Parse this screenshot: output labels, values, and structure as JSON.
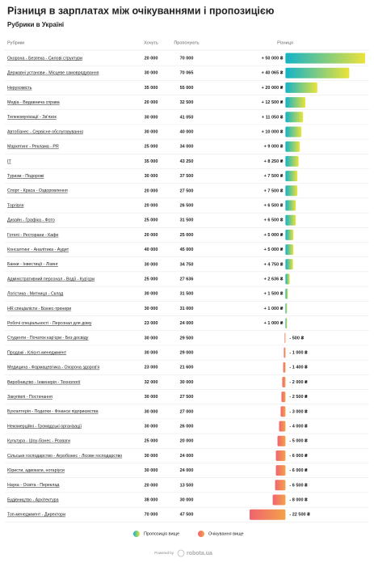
{
  "chart_data": {
    "type": "diverging-bar-table",
    "title": "Різниця в зарплатах між очікуваннями і пропозицією",
    "subtitle": "Рубрики в Україні",
    "columns": [
      "Рубрики",
      "Хочуть",
      "Пропонують",
      "Різниця"
    ],
    "categories": [
      "Охорона - Безпека - Силові структури",
      "Державні установи - Місцеве самоврядування",
      "Нерухомість",
      "Медіа - Видавнича справа",
      "Телекомунікації - Зв'язок",
      "Автобізнес - Сервісне обслуговування",
      "Маркетинг - Реклама - PR",
      "IT",
      "Туризм - Подорожі",
      "Спорт - Краса - Оздоровлення",
      "Торгівля",
      "Дизайн - Графіка - Фото",
      "Готелі - Ресторани - Кафе",
      "Консалтинг - Аналітика - Аудит",
      "Банки - Інвестиції - Лізинг",
      "Адміністративний персонал - Водії - Кур'єри",
      "Логістика - Митниця - Склад",
      "HR спеціалісти - Бізнес-тренери",
      "Робочі спеціальності - Персонал для дому",
      "Студенти - Початок кар'єри - Без досвіду",
      "Продажі - Клієнт-менеджмент",
      "Медицина - Фармацевтика - Охорона здоров'я",
      "Виробництво - Інженерія - Технології",
      "Закупівлі - Постачання",
      "Бухгалтерія - Податки - Фінанси підприємства",
      "Некомерційні - Громадські організації",
      "Культура - Шоу-бізнес - Розваги",
      "Сільське господарство - Агробізнес - Лісове господарство",
      "Юристи, адвокати, нотаріуси",
      "Наука - Освіта - Переклад",
      "Будівництво - Архітектура",
      "Топ-менеджмент - Директори"
    ],
    "want": [
      "20 000",
      "30 000",
      "35 000",
      "20 000",
      "30 000",
      "30 000",
      "25 000",
      "35 000",
      "30 000",
      "20 000",
      "20 000",
      "25 000",
      "20 000",
      "40 000",
      "30 000",
      "25 000",
      "30 000",
      "30 000",
      "23 000",
      "30 000",
      "30 000",
      "23 000",
      "32 000",
      "30 000",
      "30 000",
      "30 000",
      "25 000",
      "30 000",
      "30 000",
      "20 000",
      "38 000",
      "70 000"
    ],
    "offer": [
      "70 000",
      "70 065",
      "55 000",
      "32 500",
      "41 050",
      "40 000",
      "34 000",
      "43 250",
      "37 500",
      "27 500",
      "26 500",
      "31 500",
      "25 000",
      "45 000",
      "34 750",
      "27 636",
      "31 500",
      "31 000",
      "24 000",
      "29 500",
      "29 000",
      "21 600",
      "30 000",
      "27 500",
      "27 000",
      "26 000",
      "20 000",
      "24 000",
      "24 000",
      "13 500",
      "30 000",
      "47 500"
    ],
    "values": [
      50000,
      40065,
      20000,
      12500,
      11050,
      10000,
      9000,
      8250,
      7500,
      7500,
      6500,
      6500,
      5000,
      5000,
      4750,
      2636,
      1500,
      1000,
      1000,
      -500,
      -1000,
      -1400,
      -2000,
      -2500,
      -3000,
      -4000,
      -5000,
      -6000,
      -6000,
      -6500,
      -8000,
      -22500
    ],
    "value_labels": [
      "+ 50 000 ₴",
      "+ 40 065 ₴",
      "+ 20 000 ₴",
      "+ 12 500 ₴",
      "+ 11 050 ₴",
      "+ 10 000 ₴",
      "+ 9 000 ₴",
      "+ 8 250 ₴",
      "+ 7 500 ₴",
      "+ 7 500 ₴",
      "+ 6 500 ₴",
      "+ 6 500 ₴",
      "+ 5 000 ₴",
      "+ 5 000 ₴",
      "+ 4 750 ₴",
      "+ 2 636 ₴",
      "+ 1 500 ₴",
      "+ 1 000 ₴",
      "+ 1 000 ₴",
      "- 500 ₴",
      "- 1 000 ₴",
      "- 1 400 ₴",
      "- 2 000 ₴",
      "- 2 500 ₴",
      "- 3 000 ₴",
      "- 4 000 ₴",
      "- 5 000 ₴",
      "- 6 000 ₴",
      "- 6 000 ₴",
      "- 6 500 ₴",
      "- 8 000 ₴",
      "- 22 500 ₴"
    ],
    "xlim": [
      -22500,
      50000
    ],
    "positive_colors": [
      "#12b3c9",
      "#ebe33a"
    ],
    "negative_colors": [
      "#f4a24a",
      "#f0636f"
    ],
    "legend": [
      "Пропозиція вище",
      "Очікування вище"
    ],
    "footer": [
      "Powered by",
      "robota.ua"
    ]
  }
}
